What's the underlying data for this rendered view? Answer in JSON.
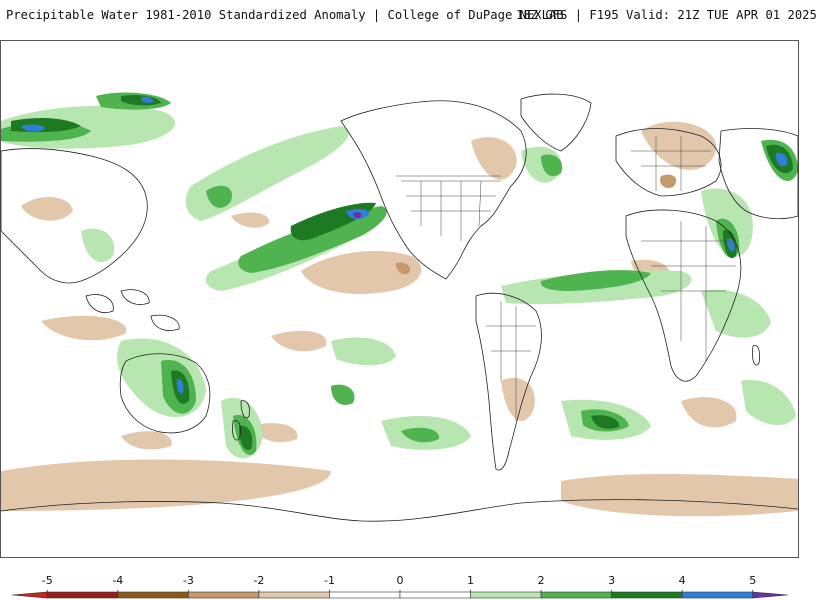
{
  "header": {
    "title_left": "Precipitable Water 1981-2010 Standardized Anomaly | College of DuPage NEXLAB",
    "title_right": "18Z GFS | F195 Valid: 21Z TUE APR 01 2025"
  },
  "legend": {
    "ticks": [
      "-5",
      "-4",
      "-3",
      "-2",
      "-1",
      "0",
      "1",
      "2",
      "3",
      "4",
      "5"
    ],
    "bins": [
      {
        "from": -5.5,
        "to": -5,
        "color": "#c0261b"
      },
      {
        "from": -5,
        "to": -4,
        "color": "#991b1b"
      },
      {
        "from": -4,
        "to": -3,
        "color": "#8b5a16"
      },
      {
        "from": -3,
        "to": -2,
        "color": "#c49a6c"
      },
      {
        "from": -2,
        "to": -1,
        "color": "#e3c7ab"
      },
      {
        "from": -1,
        "to": 0,
        "color": "#ffffff"
      },
      {
        "from": 0,
        "to": 1,
        "color": "#ffffff"
      },
      {
        "from": 1,
        "to": 2,
        "color": "#b8e6b0"
      },
      {
        "from": 2,
        "to": 3,
        "color": "#4fb34f"
      },
      {
        "from": 3,
        "to": 4,
        "color": "#1d7a22"
      },
      {
        "from": 4,
        "to": 5,
        "color": "#2f7fd6"
      },
      {
        "from": 5,
        "to": 5.5,
        "color": "#6a2fa8"
      }
    ]
  },
  "colors": {
    "brown_light": "#e3c7ab",
    "brown_mid": "#c49a6c",
    "green_light": "#b8e6b0",
    "green_mid": "#4fb34f",
    "green_dark": "#1d7a22",
    "blue": "#2f7fd6",
    "purple": "#6a2fa8",
    "coast": "#222222"
  }
}
